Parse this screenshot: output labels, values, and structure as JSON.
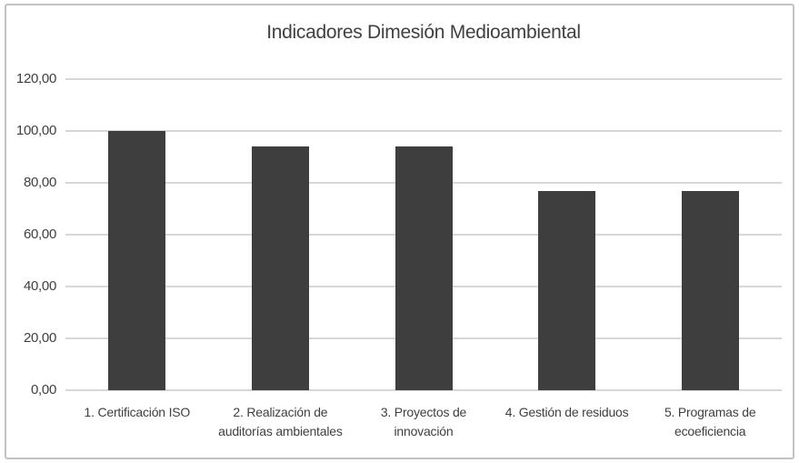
{
  "chart": {
    "title": "Indicadores Dimesión Medioambiental"
  },
  "chart_data": {
    "type": "bar",
    "title": "Indicadores Dimesión Medioambiental",
    "categories": [
      "1. Certificación ISO",
      "2. Realización de auditorías ambientales",
      "3. Proyectos de innovación",
      "4. Gestión de residuos",
      "5. Programas de ecoeficiencia"
    ],
    "values": [
      100,
      94,
      94,
      77,
      77
    ],
    "xlabel": "",
    "ylabel": "",
    "ylim": [
      0,
      120
    ],
    "ytick_step": 20,
    "ytick_labels": [
      "0,00",
      "20,00",
      "40,00",
      "60,00",
      "80,00",
      "100,00",
      "120,00"
    ],
    "grid": true,
    "legend": false,
    "colors": {
      "bar": "#3e3e3e",
      "gridline": "#d7d7d7",
      "axis_line": "#d7d7d7",
      "frame_border": "#c2c2c2",
      "title_text": "#404040",
      "tick_text": "#3f3f3f",
      "background": "#ffffff"
    }
  }
}
